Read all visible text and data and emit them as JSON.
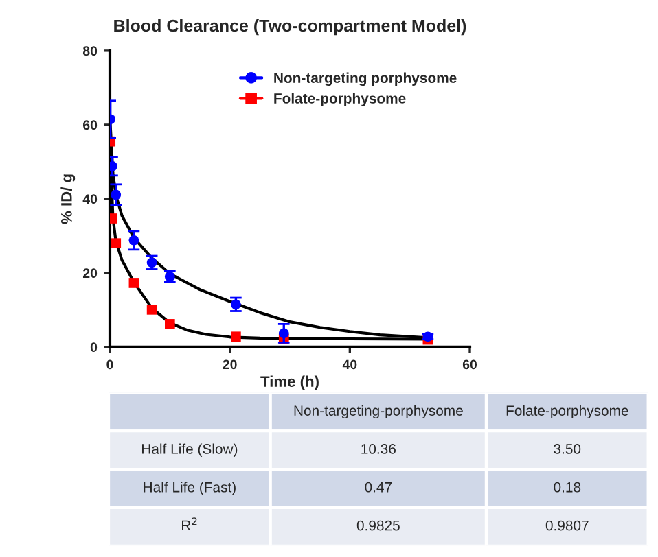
{
  "chart_data": {
    "type": "scatter",
    "title": "Blood Clearance (Two-compartment Model)",
    "xlabel": "Time (h)",
    "ylabel": "% ID/ g",
    "xlim": [
      0,
      60
    ],
    "xticks": [
      0,
      20,
      40,
      60
    ],
    "ylim": [
      0,
      80
    ],
    "yticks": [
      0,
      20,
      40,
      60,
      80
    ],
    "grid": false,
    "legend": "top right",
    "series": [
      {
        "name": "Non-targeting porphysome",
        "color": "#0000ff",
        "marker": "circle",
        "x": [
          0.08,
          0.4,
          1,
          4,
          7,
          10,
          21,
          29,
          53
        ],
        "values": [
          61.5,
          48.8,
          41.1,
          28.8,
          22.8,
          19,
          11.5,
          3.7,
          2.8
        ],
        "errors": [
          5,
          2.5,
          2.8,
          2.5,
          1.8,
          1.5,
          1.8,
          2.5,
          0.7
        ]
      },
      {
        "name": "Folate-porphysome",
        "color": "#ff0000",
        "marker": "square",
        "x": [
          0.08,
          0.4,
          1,
          4,
          7,
          10,
          21,
          29,
          53
        ],
        "values": [
          55.5,
          34.7,
          28,
          17.3,
          10.1,
          6.2,
          2.8,
          2.2,
          2.0
        ]
      },
      {
        "type": "line",
        "color": "#000000",
        "x": [
          0,
          0.5,
          1,
          2,
          4,
          7,
          10,
          15,
          20,
          25,
          30,
          35,
          40,
          45,
          53
        ],
        "values": [
          62,
          47,
          41,
          35.5,
          29.5,
          24,
          19.8,
          15.5,
          12.3,
          9.3,
          6.8,
          5.3,
          4.2,
          3.3,
          2.5
        ]
      },
      {
        "type": "line",
        "color": "#000000",
        "x": [
          0,
          0.5,
          1,
          2,
          4,
          7,
          10,
          13,
          16,
          20,
          25,
          30,
          40,
          53
        ],
        "values": [
          56,
          35,
          28.5,
          23.5,
          17.5,
          10.5,
          6.5,
          4.5,
          3.4,
          2.7,
          2.4,
          2.3,
          2.2,
          2.1
        ]
      }
    ],
    "annotations": [
      "Non-targeting-porphysome",
      "Folate-porphysome",
      "Half Life (Slow)",
      "10.36",
      "3.50",
      "Half Life (Fast)",
      "0.47",
      "0.18",
      "R$^{2}$",
      "0.9825",
      "0.9807"
    ]
  }
}
